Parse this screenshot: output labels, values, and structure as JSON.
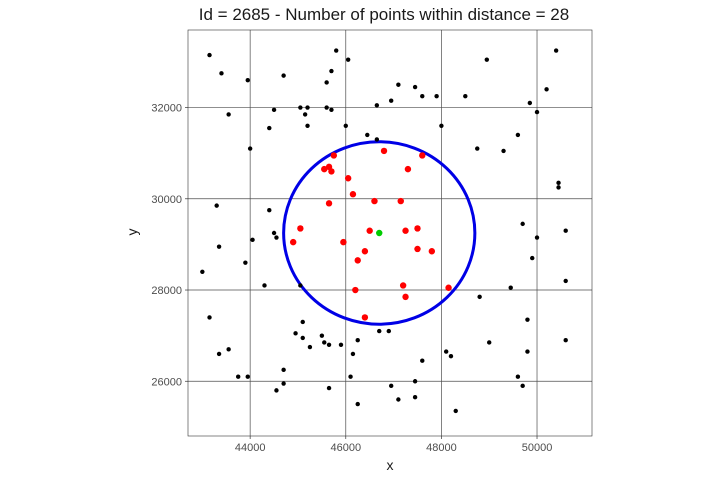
{
  "chart_data": {
    "type": "scatter",
    "title": "Id = 2685 - Number of points within distance = 28",
    "xlabel": "x",
    "ylabel": "y",
    "xlim": [
      42700,
      51150
    ],
    "ylim": [
      24800,
      33700
    ],
    "x_ticks": [
      44000,
      46000,
      48000,
      50000
    ],
    "y_ticks": [
      26000,
      28000,
      30000,
      32000
    ],
    "x_tick_labels": [
      "44000",
      "46000",
      "48000",
      "50000"
    ],
    "y_tick_labels": [
      "26000",
      "28000",
      "30000",
      "32000"
    ],
    "grid": true,
    "colors": {
      "outside": "#000000",
      "inside": "#ff0000",
      "center": "#00cc00",
      "circle": "#0000e6"
    },
    "center": {
      "x": 46700,
      "y": 29250
    },
    "radius": 2000,
    "series": [
      {
        "role": "outside",
        "points": [
          [
            43150,
            33150
          ],
          [
            43400,
            32750
          ],
          [
            43550,
            31850
          ],
          [
            43950,
            32600
          ],
          [
            44000,
            31100
          ],
          [
            44050,
            29100
          ],
          [
            43900,
            28600
          ],
          [
            43350,
            28950
          ],
          [
            43300,
            29850
          ],
          [
            43000,
            28400
          ],
          [
            44300,
            28100
          ],
          [
            44400,
            29750
          ],
          [
            44500,
            29250
          ],
          [
            44550,
            29150
          ],
          [
            44700,
            32700
          ],
          [
            44500,
            31950
          ],
          [
            44400,
            31550
          ],
          [
            45050,
            32000
          ],
          [
            45150,
            31850
          ],
          [
            45200,
            32000
          ],
          [
            45200,
            31600
          ],
          [
            45600,
            32000
          ],
          [
            45700,
            31950
          ],
          [
            45800,
            33250
          ],
          [
            45700,
            32800
          ],
          [
            45600,
            32550
          ],
          [
            46050,
            33050
          ],
          [
            46000,
            31600
          ],
          [
            46450,
            31400
          ],
          [
            46650,
            32050
          ],
          [
            46650,
            31300
          ],
          [
            46950,
            32150
          ],
          [
            47100,
            32500
          ],
          [
            47450,
            32450
          ],
          [
            47600,
            32250
          ],
          [
            47900,
            32250
          ],
          [
            48000,
            31600
          ],
          [
            48500,
            32250
          ],
          [
            48750,
            31100
          ],
          [
            48950,
            33050
          ],
          [
            49300,
            31050
          ],
          [
            49600,
            31400
          ],
          [
            49850,
            32100
          ],
          [
            50000,
            31900
          ],
          [
            50200,
            32400
          ],
          [
            50400,
            33250
          ],
          [
            50450,
            30350
          ],
          [
            50450,
            30250
          ],
          [
            49700,
            29450
          ],
          [
            50000,
            29150
          ],
          [
            50600,
            29300
          ],
          [
            49900,
            28700
          ],
          [
            50600,
            28200
          ],
          [
            49450,
            28050
          ],
          [
            48800,
            27850
          ],
          [
            49800,
            27350
          ],
          [
            49000,
            26850
          ],
          [
            49800,
            26650
          ],
          [
            50600,
            26900
          ],
          [
            49600,
            26100
          ],
          [
            49700,
            25900
          ],
          [
            48100,
            26650
          ],
          [
            48200,
            26550
          ],
          [
            48300,
            25350
          ],
          [
            47600,
            26450
          ],
          [
            47450,
            26000
          ],
          [
            47450,
            25650
          ],
          [
            47100,
            25600
          ],
          [
            46950,
            25900
          ],
          [
            46700,
            27100
          ],
          [
            46900,
            27100
          ],
          [
            46250,
            26900
          ],
          [
            46150,
            26600
          ],
          [
            46100,
            26100
          ],
          [
            46250,
            25500
          ],
          [
            45900,
            26800
          ],
          [
            45650,
            26800
          ],
          [
            45650,
            25850
          ],
          [
            45550,
            26850
          ],
          [
            45500,
            27000
          ],
          [
            45250,
            26750
          ],
          [
            45100,
            26950
          ],
          [
            45100,
            27300
          ],
          [
            44950,
            27050
          ],
          [
            44700,
            26250
          ],
          [
            44700,
            25950
          ],
          [
            44550,
            25800
          ],
          [
            43950,
            26100
          ],
          [
            43750,
            26100
          ],
          [
            43550,
            26700
          ],
          [
            43350,
            26600
          ],
          [
            43150,
            27400
          ],
          [
            45050,
            28100
          ]
        ]
      },
      {
        "role": "inside",
        "points": [
          [
            45750,
            30950
          ],
          [
            45650,
            30700
          ],
          [
            45550,
            30650
          ],
          [
            45700,
            30600
          ],
          [
            46050,
            30450
          ],
          [
            46800,
            31050
          ],
          [
            47600,
            30950
          ],
          [
            47300,
            30650
          ],
          [
            46150,
            30100
          ],
          [
            45650,
            29900
          ],
          [
            46600,
            29950
          ],
          [
            47150,
            29950
          ],
          [
            45050,
            29350
          ],
          [
            44900,
            29050
          ],
          [
            45950,
            29050
          ],
          [
            46400,
            28850
          ],
          [
            46500,
            29300
          ],
          [
            47250,
            29300
          ],
          [
            47500,
            29350
          ],
          [
            47500,
            28900
          ],
          [
            47800,
            28850
          ],
          [
            46250,
            28650
          ],
          [
            47200,
            28100
          ],
          [
            47250,
            27850
          ],
          [
            48150,
            28050
          ],
          [
            46200,
            28000
          ],
          [
            46400,
            27400
          ]
        ]
      },
      {
        "role": "center",
        "points": [
          [
            46700,
            29250
          ]
        ]
      }
    ]
  }
}
